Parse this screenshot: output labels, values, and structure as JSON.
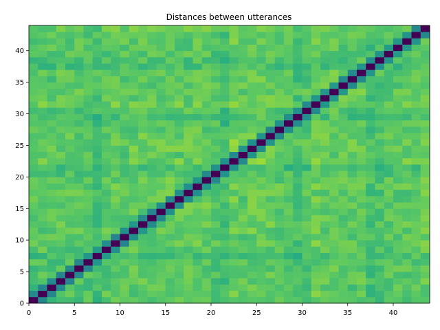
{
  "chart_data": {
    "type": "heatmap",
    "title": "Distances between utterances",
    "xlabel": "",
    "ylabel": "",
    "n": 44,
    "xlim": [
      0,
      44
    ],
    "ylim": [
      0,
      44
    ],
    "origin": "lower",
    "grid": false,
    "colormap": "viridis",
    "value_range": [
      0,
      1
    ],
    "diagonal_value": 0,
    "x_ticks": [
      0,
      5,
      10,
      15,
      20,
      25,
      30,
      35,
      40
    ],
    "y_ticks": [
      0,
      5,
      10,
      15,
      20,
      25,
      30,
      35,
      40
    ],
    "row_mean": [
      0.71,
      0.74,
      0.72,
      0.73,
      0.74,
      0.73,
      0.72,
      0.66,
      0.73,
      0.76,
      0.74,
      0.75,
      0.76,
      0.74,
      0.75,
      0.77,
      0.75,
      0.74,
      0.76,
      0.75,
      0.72,
      0.66,
      0.8,
      0.74,
      0.78,
      0.79,
      0.76,
      0.74,
      0.71,
      0.66,
      0.72,
      0.79,
      0.76,
      0.77,
      0.75,
      0.74,
      0.76,
      0.66,
      0.68,
      0.72,
      0.73,
      0.74,
      0.75,
      0.78
    ]
  }
}
